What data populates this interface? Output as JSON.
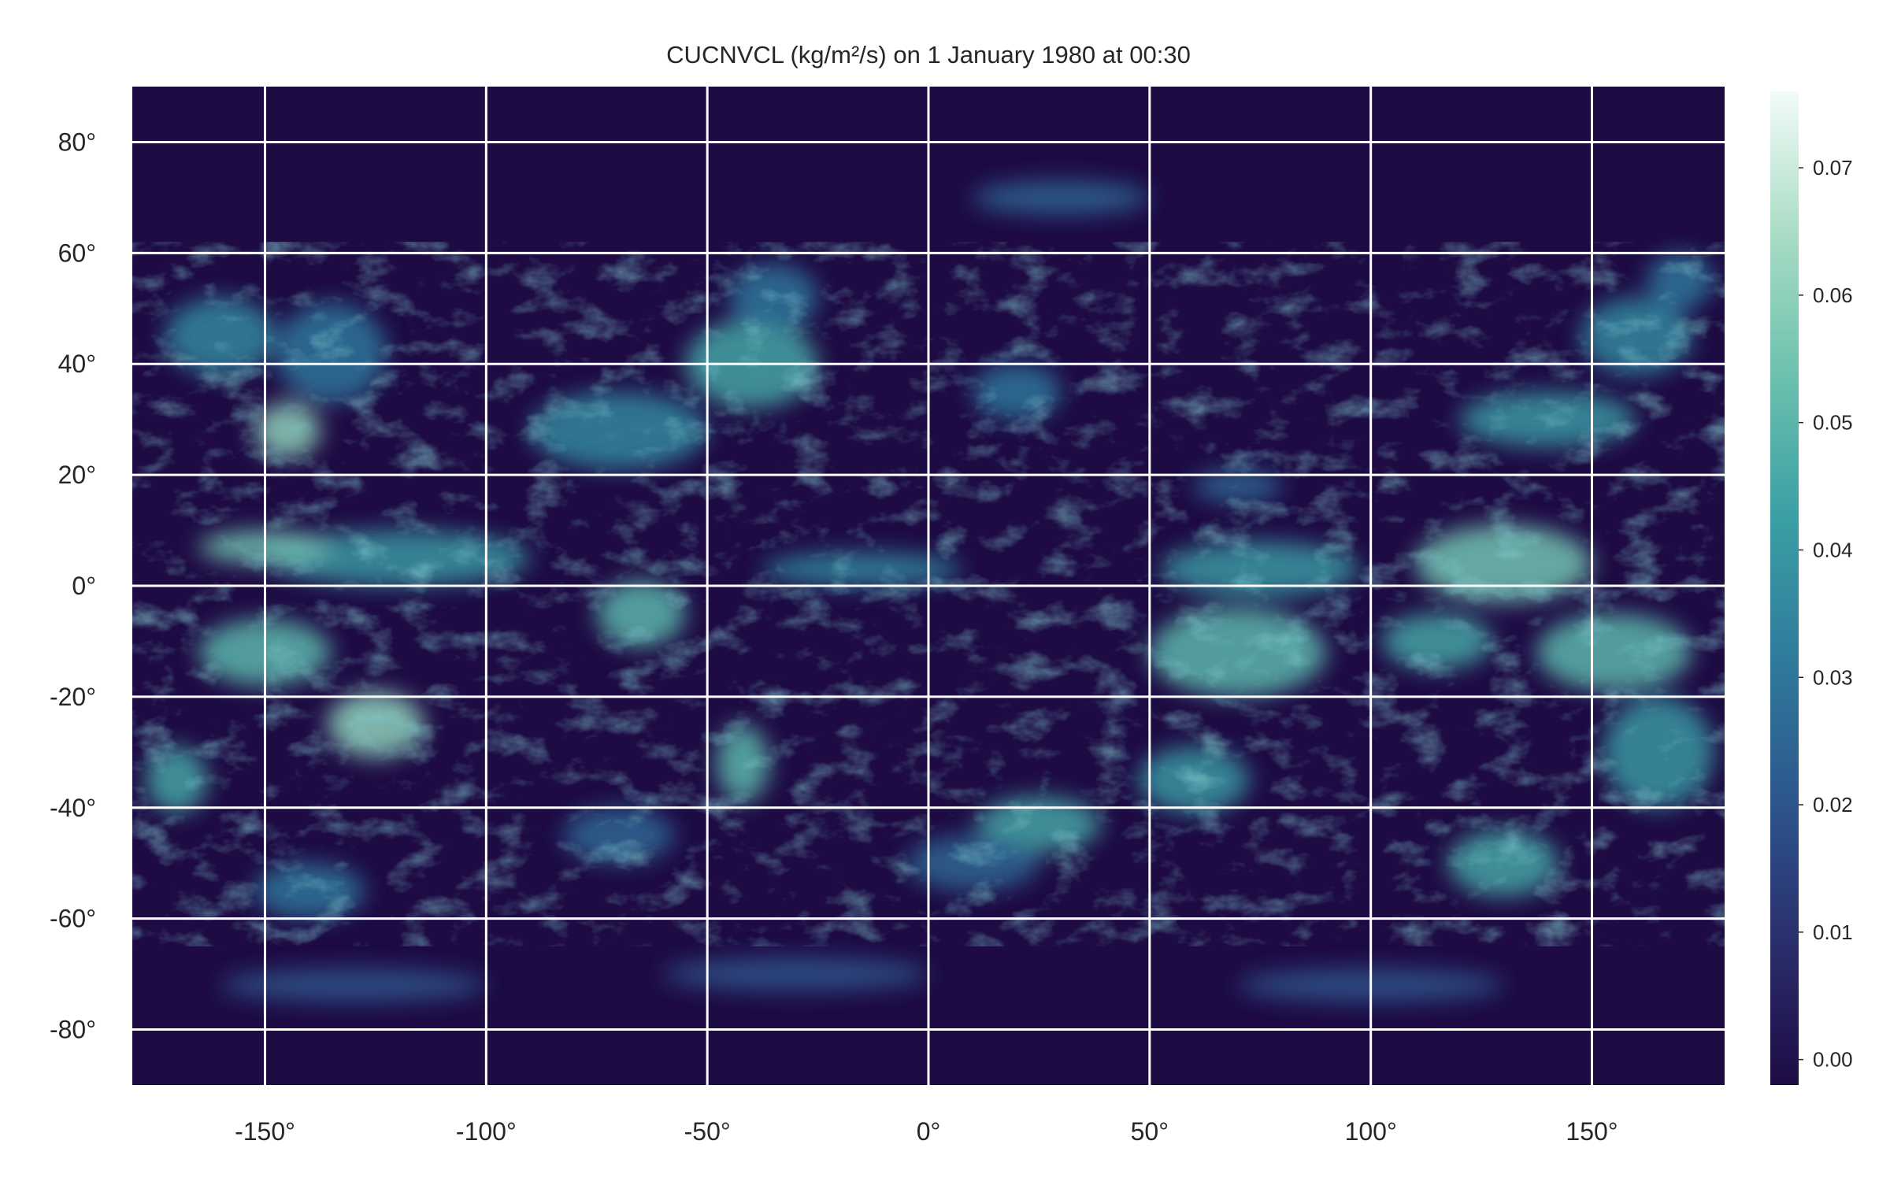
{
  "chart_data": {
    "type": "heatmap",
    "title": "CUCNVCL (kg/m²/s) on 1 January 1980 at 00:30",
    "x_range": [
      -180,
      180
    ],
    "y_range": [
      -90,
      90
    ],
    "x_ticks": [
      -150,
      -100,
      -50,
      0,
      50,
      100,
      150
    ],
    "x_tick_labels": [
      "-150°",
      "-100°",
      "-50°",
      "0°",
      "50°",
      "100°",
      "150°"
    ],
    "y_ticks": [
      80,
      60,
      40,
      20,
      0,
      -20,
      -40,
      -60,
      -80
    ],
    "y_tick_labels": [
      "80°",
      "60°",
      "40°",
      "20°",
      "0°",
      "-20°",
      "-40°",
      "-60°",
      "-80°"
    ],
    "grid": true,
    "colorbar": {
      "range": [
        -0.002,
        0.076
      ],
      "ticks": [
        0.0,
        0.01,
        0.02,
        0.03,
        0.04,
        0.05,
        0.06,
        0.07
      ],
      "tick_labels": [
        "0.00",
        "0.01",
        "0.02",
        "0.03",
        "0.04",
        "0.05",
        "0.06",
        "0.07"
      ],
      "colormap": [
        "#1e0b44",
        "#2a2e6c",
        "#2d568c",
        "#2f7b9c",
        "#3b9fa4",
        "#6cc1ae",
        "#a9dcc5",
        "#f2fbf7"
      ]
    },
    "features": [
      {
        "lon": -120,
        "lat": 5,
        "width": 60,
        "height": 10,
        "value": 0.04
      },
      {
        "lon": -150,
        "lat": 7,
        "width": 30,
        "height": 6,
        "value": 0.055
      },
      {
        "lon": -150,
        "lat": -12,
        "width": 30,
        "height": 12,
        "value": 0.05
      },
      {
        "lon": -125,
        "lat": -25,
        "width": 22,
        "height": 12,
        "value": 0.06
      },
      {
        "lon": -160,
        "lat": 45,
        "width": 25,
        "height": 14,
        "value": 0.035
      },
      {
        "lon": -135,
        "lat": 42,
        "width": 25,
        "height": 18,
        "value": 0.03
      },
      {
        "lon": -145,
        "lat": 28,
        "width": 15,
        "height": 10,
        "value": 0.06
      },
      {
        "lon": -170,
        "lat": -35,
        "width": 14,
        "height": 12,
        "value": 0.045
      },
      {
        "lon": -140,
        "lat": -55,
        "width": 25,
        "height": 10,
        "value": 0.03
      },
      {
        "lon": -65,
        "lat": -5,
        "width": 20,
        "height": 12,
        "value": 0.05
      },
      {
        "lon": -70,
        "lat": 28,
        "width": 40,
        "height": 14,
        "value": 0.035
      },
      {
        "lon": -40,
        "lat": 40,
        "width": 30,
        "height": 16,
        "value": 0.045
      },
      {
        "lon": -35,
        "lat": 52,
        "width": 20,
        "height": 12,
        "value": 0.03
      },
      {
        "lon": -42,
        "lat": -32,
        "width": 12,
        "height": 14,
        "value": 0.05
      },
      {
        "lon": -15,
        "lat": 3,
        "width": 45,
        "height": 6,
        "value": 0.035
      },
      {
        "lon": 20,
        "lat": 35,
        "width": 20,
        "height": 10,
        "value": 0.03
      },
      {
        "lon": 25,
        "lat": -43,
        "width": 28,
        "height": 10,
        "value": 0.045
      },
      {
        "lon": 10,
        "lat": -50,
        "width": 30,
        "height": 10,
        "value": 0.025
      },
      {
        "lon": -70,
        "lat": -45,
        "width": 25,
        "height": 10,
        "value": 0.025
      },
      {
        "lon": 75,
        "lat": 3,
        "width": 45,
        "height": 10,
        "value": 0.04
      },
      {
        "lon": 70,
        "lat": -12,
        "width": 40,
        "height": 16,
        "value": 0.05
      },
      {
        "lon": 130,
        "lat": 4,
        "width": 40,
        "height": 14,
        "value": 0.055
      },
      {
        "lon": 155,
        "lat": -12,
        "width": 35,
        "height": 14,
        "value": 0.05
      },
      {
        "lon": 115,
        "lat": -10,
        "width": 25,
        "height": 10,
        "value": 0.045
      },
      {
        "lon": 60,
        "lat": -35,
        "width": 25,
        "height": 12,
        "value": 0.04
      },
      {
        "lon": 130,
        "lat": -50,
        "width": 25,
        "height": 12,
        "value": 0.045
      },
      {
        "lon": 165,
        "lat": -30,
        "width": 25,
        "height": 20,
        "value": 0.04
      },
      {
        "lon": 140,
        "lat": 30,
        "width": 40,
        "height": 10,
        "value": 0.04
      },
      {
        "lon": 160,
        "lat": 45,
        "width": 25,
        "height": 14,
        "value": 0.035
      },
      {
        "lon": 170,
        "lat": 55,
        "width": 15,
        "height": 10,
        "value": 0.03
      },
      {
        "lon": 70,
        "lat": 18,
        "width": 20,
        "height": 6,
        "value": 0.025
      },
      {
        "lon": 30,
        "lat": 70,
        "width": 40,
        "height": 6,
        "value": 0.025
      },
      {
        "lon": -30,
        "lat": -70,
        "width": 60,
        "height": 6,
        "value": 0.02
      },
      {
        "lon": 100,
        "lat": -72,
        "width": 60,
        "height": 6,
        "value": 0.02
      },
      {
        "lon": -130,
        "lat": -72,
        "width": 60,
        "height": 6,
        "value": 0.02
      }
    ]
  }
}
